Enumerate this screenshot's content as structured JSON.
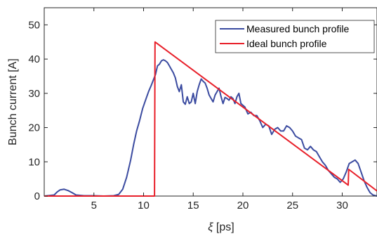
{
  "chart_data": {
    "type": "line",
    "xlabel_symbol": "ξ",
    "xlabel_unit": "[ps]",
    "ylabel": "Bunch current [A]",
    "xlim": [
      0,
      33.5
    ],
    "ylim": [
      0,
      55
    ],
    "xticks": [
      5,
      10,
      15,
      20,
      25,
      30
    ],
    "yticks": [
      0,
      10,
      20,
      30,
      40,
      50
    ],
    "grid": false,
    "legend_position": "top-right",
    "series": [
      {
        "name": "Measured bunch profile",
        "color": "#3b4ba0",
        "x": [
          0,
          1,
          1.3,
          1.6,
          2.0,
          2.4,
          2.8,
          3.2,
          4.0,
          5.0,
          6.0,
          7.0,
          7.5,
          7.9,
          8.3,
          8.7,
          9.0,
          9.3,
          9.6,
          9.9,
          10.2,
          10.5,
          10.8,
          11.0,
          11.2,
          11.4,
          11.6,
          11.8,
          12.0,
          12.2,
          12.4,
          12.6,
          12.8,
          13.0,
          13.2,
          13.4,
          13.6,
          13.8,
          14.0,
          14.2,
          14.4,
          14.6,
          14.8,
          15.0,
          15.2,
          15.4,
          15.6,
          15.8,
          16.0,
          16.2,
          16.4,
          16.6,
          16.8,
          17.0,
          17.2,
          17.4,
          17.6,
          17.8,
          18.0,
          18.2,
          18.4,
          18.6,
          18.8,
          19.0,
          19.2,
          19.4,
          19.6,
          19.8,
          20.0,
          20.2,
          20.5,
          20.8,
          21.1,
          21.4,
          21.7,
          22.0,
          22.3,
          22.6,
          22.9,
          23.2,
          23.5,
          23.8,
          24.1,
          24.4,
          24.7,
          25.0,
          25.3,
          25.6,
          25.9,
          26.2,
          26.5,
          26.8,
          27.1,
          27.4,
          27.7,
          28.0,
          28.3,
          28.6,
          28.9,
          29.2,
          29.5,
          29.8,
          30.1,
          30.4,
          30.7,
          31.0,
          31.3,
          31.6,
          31.9,
          32.2,
          32.5,
          32.8,
          33.1,
          33.5
        ],
        "y": [
          0,
          0.3,
          1.2,
          1.8,
          2.0,
          1.6,
          1.0,
          0.3,
          0.1,
          0.1,
          0,
          0.1,
          0.5,
          2.0,
          5.5,
          10.5,
          15.0,
          19.0,
          22.0,
          25.5,
          28.0,
          30.5,
          32.5,
          34.0,
          35.5,
          38.0,
          38.5,
          39.5,
          39.8,
          39.5,
          39.0,
          38.0,
          37.0,
          36.0,
          34.5,
          32.0,
          30.5,
          32.5,
          27.5,
          26.8,
          29.0,
          27.0,
          27.5,
          30.0,
          27.0,
          30.5,
          32.5,
          34.2,
          33.5,
          33.0,
          31.5,
          29.5,
          28.5,
          27.5,
          29.5,
          30.5,
          31.5,
          29.0,
          27.0,
          28.8,
          28.5,
          28.0,
          29.0,
          28.5,
          27.0,
          29.0,
          30.0,
          27.0,
          26.5,
          26.0,
          24.0,
          24.5,
          23.5,
          23.5,
          22.0,
          20.0,
          21.0,
          20.5,
          18.0,
          19.5,
          20.0,
          19.0,
          19.0,
          20.5,
          20.0,
          19.0,
          17.5,
          17.0,
          16.5,
          14.0,
          13.5,
          14.5,
          13.5,
          13.0,
          11.5,
          10.0,
          9.0,
          7.5,
          6.5,
          5.5,
          5.0,
          4.0,
          5.0,
          7.0,
          9.5,
          10.0,
          10.5,
          9.5,
          7.0,
          4.5,
          2.5,
          1.0,
          0.3,
          0
        ]
      },
      {
        "name": "Ideal bunch profile",
        "color": "#e8202a",
        "x": [
          0,
          11.1,
          11.15,
          30.6,
          30.65,
          33.5
        ],
        "y": [
          0,
          0,
          45,
          3.2,
          7.8,
          1.5
        ]
      }
    ]
  }
}
